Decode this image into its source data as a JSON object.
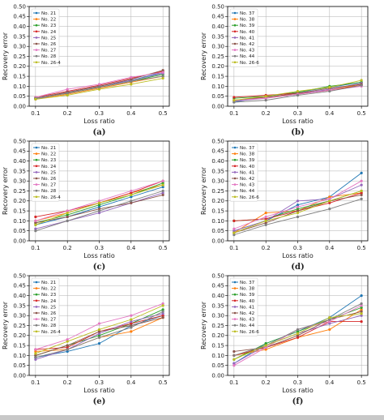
{
  "figure": {
    "colors": [
      "#1f77b4",
      "#ff7f0e",
      "#2ca02c",
      "#d62728",
      "#9467bd",
      "#8c564b",
      "#e377c2",
      "#7f7f7f",
      "#bcbd22"
    ]
  },
  "chart_data": [
    {
      "type": "line",
      "caption": "(a)",
      "xlabel": "Loss ratio",
      "ylabel": "Recovery error",
      "x": [
        0.1,
        0.2,
        0.3,
        0.4,
        0.5
      ],
      "xticks": [
        "0.1",
        "0.2",
        "0.3",
        "0.4",
        "0.5"
      ],
      "ylim": [
        0,
        0.5
      ],
      "yticks": [
        "0.00",
        "0.05",
        "0.10",
        "0.15",
        "0.20",
        "0.25",
        "0.30",
        "0.35",
        "0.40",
        "0.45",
        "0.50"
      ],
      "grid": true,
      "legend_position": "top-left",
      "series": [
        {
          "name": "No. 21",
          "values": [
            0.04,
            0.07,
            0.1,
            0.13,
            0.17
          ]
        },
        {
          "name": "No. 22",
          "values": [
            0.035,
            0.06,
            0.09,
            0.12,
            0.15
          ]
        },
        {
          "name": "No. 23",
          "values": [
            0.04,
            0.065,
            0.095,
            0.125,
            0.16
          ]
        },
        {
          "name": "No. 24",
          "values": [
            0.045,
            0.075,
            0.105,
            0.14,
            0.175
          ]
        },
        {
          "name": "No. 25",
          "values": [
            0.035,
            0.07,
            0.1,
            0.13,
            0.165
          ]
        },
        {
          "name": "No. 26",
          "values": [
            0.04,
            0.07,
            0.1,
            0.135,
            0.18
          ]
        },
        {
          "name": "No. 27",
          "values": [
            0.045,
            0.085,
            0.11,
            0.145,
            0.17
          ]
        },
        {
          "name": "No. 28",
          "values": [
            0.04,
            0.065,
            0.095,
            0.125,
            0.15
          ]
        },
        {
          "name": "No. 26-4",
          "values": [
            0.035,
            0.055,
            0.085,
            0.11,
            0.14
          ]
        }
      ]
    },
    {
      "type": "line",
      "caption": "(b)",
      "xlabel": "Loss ratio",
      "ylabel": "Recovery error",
      "x": [
        0.1,
        0.2,
        0.3,
        0.4,
        0.5
      ],
      "xticks": [
        "0.1",
        "0.2",
        "0.3",
        "0.4",
        "0.5"
      ],
      "ylim": [
        0,
        0.5
      ],
      "yticks": [
        "0.00",
        "0.05",
        "0.10",
        "0.15",
        "0.20",
        "0.25",
        "0.30",
        "0.35",
        "0.40",
        "0.45",
        "0.50"
      ],
      "grid": true,
      "legend_position": "top-left",
      "series": [
        {
          "name": "No. 37",
          "values": [
            0.02,
            0.05,
            0.07,
            0.095,
            0.12
          ]
        },
        {
          "name": "No. 38",
          "values": [
            0.03,
            0.045,
            0.06,
            0.08,
            0.11
          ]
        },
        {
          "name": "No. 39",
          "values": [
            0.04,
            0.05,
            0.07,
            0.1,
            0.12
          ]
        },
        {
          "name": "No. 40",
          "values": [
            0.045,
            0.055,
            0.065,
            0.08,
            0.105
          ]
        },
        {
          "name": "No. 41",
          "values": [
            0.025,
            0.04,
            0.06,
            0.085,
            0.115
          ]
        },
        {
          "name": "No. 42",
          "values": [
            0.03,
            0.045,
            0.065,
            0.09,
            0.11
          ]
        },
        {
          "name": "No. 43",
          "values": [
            0.03,
            0.04,
            0.06,
            0.08,
            0.1
          ]
        },
        {
          "name": "No. 44",
          "values": [
            0.02,
            0.03,
            0.055,
            0.075,
            0.105
          ]
        },
        {
          "name": "No. 26-6",
          "values": [
            0.03,
            0.05,
            0.075,
            0.095,
            0.13
          ]
        }
      ]
    },
    {
      "type": "line",
      "caption": "(c)",
      "xlabel": "Loss ratio",
      "ylabel": "Recovery error",
      "x": [
        0.1,
        0.2,
        0.3,
        0.4,
        0.5
      ],
      "xticks": [
        "0.1",
        "0.2",
        "0.3",
        "0.4",
        "0.5"
      ],
      "ylim": [
        0,
        0.5
      ],
      "yticks": [
        "0.00",
        "0.05",
        "0.10",
        "0.15",
        "0.20",
        "0.25",
        "0.30",
        "0.35",
        "0.40",
        "0.45",
        "0.50"
      ],
      "grid": true,
      "legend_position": "top-left",
      "series": [
        {
          "name": "No. 21",
          "values": [
            0.08,
            0.12,
            0.17,
            0.22,
            0.27
          ]
        },
        {
          "name": "No. 22",
          "values": [
            0.1,
            0.14,
            0.19,
            0.24,
            0.28
          ]
        },
        {
          "name": "No. 23",
          "values": [
            0.09,
            0.13,
            0.18,
            0.23,
            0.29
          ]
        },
        {
          "name": "No. 24",
          "values": [
            0.12,
            0.15,
            0.19,
            0.24,
            0.3
          ]
        },
        {
          "name": "No. 25",
          "values": [
            0.06,
            0.1,
            0.14,
            0.19,
            0.24
          ]
        },
        {
          "name": "No. 26",
          "values": [
            0.09,
            0.12,
            0.16,
            0.19,
            0.23
          ]
        },
        {
          "name": "No. 27",
          "values": [
            0.1,
            0.15,
            0.2,
            0.25,
            0.3
          ]
        },
        {
          "name": "No. 28",
          "values": [
            0.05,
            0.1,
            0.15,
            0.2,
            0.25
          ]
        },
        {
          "name": "No. 26-4",
          "values": [
            0.08,
            0.14,
            0.19,
            0.23,
            0.28
          ]
        }
      ]
    },
    {
      "type": "line",
      "caption": "(d)",
      "xlabel": "Loss ratio",
      "ylabel": "Recovery error",
      "x": [
        0.1,
        0.2,
        0.3,
        0.4,
        0.5
      ],
      "xticks": [
        "0.1",
        "0.2",
        "0.3",
        "0.4",
        "0.5"
      ],
      "ylim": [
        0,
        0.5
      ],
      "yticks": [
        "0.00",
        "0.05",
        "0.10",
        "0.15",
        "0.20",
        "0.25",
        "0.30",
        "0.35",
        "0.40",
        "0.45",
        "0.50"
      ],
      "grid": true,
      "legend_position": "top-left",
      "series": [
        {
          "name": "No. 37",
          "values": [
            0.05,
            0.1,
            0.18,
            0.22,
            0.34
          ]
        },
        {
          "name": "No. 38",
          "values": [
            0.04,
            0.14,
            0.15,
            0.22,
            0.24
          ]
        },
        {
          "name": "No. 39",
          "values": [
            0.1,
            0.11,
            0.16,
            0.2,
            0.25
          ]
        },
        {
          "name": "No. 40",
          "values": [
            0.1,
            0.11,
            0.15,
            0.19,
            0.24
          ]
        },
        {
          "name": "No. 41",
          "values": [
            0.05,
            0.1,
            0.2,
            0.21,
            0.28
          ]
        },
        {
          "name": "No. 42",
          "values": [
            0.04,
            0.09,
            0.15,
            0.2,
            0.23
          ]
        },
        {
          "name": "No. 43",
          "values": [
            0.06,
            0.12,
            0.17,
            0.21,
            0.3
          ]
        },
        {
          "name": "No. 44",
          "values": [
            0.03,
            0.08,
            0.12,
            0.16,
            0.21
          ]
        },
        {
          "name": "No. 26-6",
          "values": [
            0.04,
            0.1,
            0.14,
            0.2,
            0.25
          ]
        }
      ]
    },
    {
      "type": "line",
      "caption": "(e)",
      "xlabel": "Loss ratio",
      "ylabel": "Recovery error",
      "x": [
        0.1,
        0.2,
        0.3,
        0.4,
        0.5
      ],
      "xticks": [
        "0.1",
        "0.2",
        "0.3",
        "0.4",
        "0.5"
      ],
      "ylim": [
        0,
        0.5
      ],
      "yticks": [
        "0.00",
        "0.05",
        "0.10",
        "0.15",
        "0.20",
        "0.25",
        "0.30",
        "0.35",
        "0.40",
        "0.45",
        "0.50"
      ],
      "grid": true,
      "legend_position": "top-left",
      "series": [
        {
          "name": "No. 21",
          "values": [
            0.09,
            0.12,
            0.16,
            0.25,
            0.3
          ]
        },
        {
          "name": "No. 22",
          "values": [
            0.12,
            0.13,
            0.19,
            0.22,
            0.29
          ]
        },
        {
          "name": "No. 23",
          "values": [
            0.1,
            0.15,
            0.2,
            0.26,
            0.33
          ]
        },
        {
          "name": "No. 24",
          "values": [
            0.13,
            0.14,
            0.22,
            0.26,
            0.3
          ]
        },
        {
          "name": "No. 25",
          "values": [
            0.08,
            0.13,
            0.21,
            0.27,
            0.31
          ]
        },
        {
          "name": "No. 26",
          "values": [
            0.1,
            0.15,
            0.22,
            0.25,
            0.29
          ]
        },
        {
          "name": "No. 27",
          "values": [
            0.13,
            0.18,
            0.26,
            0.3,
            0.36
          ]
        },
        {
          "name": "No. 28",
          "values": [
            0.09,
            0.13,
            0.19,
            0.24,
            0.32
          ]
        },
        {
          "name": "No. 26-4",
          "values": [
            0.11,
            0.17,
            0.23,
            0.28,
            0.35
          ]
        }
      ]
    },
    {
      "type": "line",
      "caption": "(f)",
      "xlabel": "Loss ratio",
      "ylabel": "Recovery error",
      "x": [
        0.1,
        0.2,
        0.3,
        0.4,
        0.5
      ],
      "xticks": [
        "0.1",
        "0.2",
        "0.3",
        "0.4",
        "0.5"
      ],
      "ylim": [
        0,
        0.5
      ],
      "yticks": [
        "0.00",
        "0.05",
        "0.10",
        "0.15",
        "0.20",
        "0.25",
        "0.30",
        "0.35",
        "0.40",
        "0.45",
        "0.50"
      ],
      "grid": true,
      "legend_position": "top-left",
      "series": [
        {
          "name": "No. 37",
          "values": [
            0.06,
            0.16,
            0.22,
            0.29,
            0.4
          ]
        },
        {
          "name": "No. 38",
          "values": [
            0.1,
            0.13,
            0.19,
            0.23,
            0.33
          ]
        },
        {
          "name": "No. 39",
          "values": [
            0.08,
            0.16,
            0.22,
            0.28,
            0.34
          ]
        },
        {
          "name": "No. 40",
          "values": [
            0.1,
            0.14,
            0.19,
            0.27,
            0.27
          ]
        },
        {
          "name": "No. 41",
          "values": [
            0.06,
            0.15,
            0.21,
            0.26,
            0.3
          ]
        },
        {
          "name": "No. 42",
          "values": [
            0.12,
            0.14,
            0.2,
            0.28,
            0.32
          ]
        },
        {
          "name": "No. 43",
          "values": [
            0.05,
            0.14,
            0.23,
            0.27,
            0.35
          ]
        },
        {
          "name": "No. 44",
          "values": [
            0.1,
            0.15,
            0.23,
            0.28,
            0.36
          ]
        },
        {
          "name": "No. 26-6",
          "values": [
            0.08,
            0.15,
            0.21,
            0.29,
            0.31
          ]
        }
      ]
    }
  ]
}
